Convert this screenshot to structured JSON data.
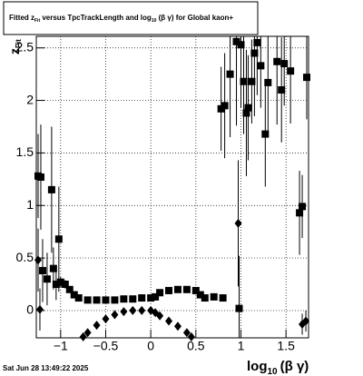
{
  "chart_data": {
    "type": "scatter",
    "title_parts": [
      "Fitted  z",
      "Fit",
      "  versus TpcTrackLength and log",
      "10",
      " (β  γ) for Global kaon+"
    ],
    "xlabel_parts": [
      "log",
      "10",
      "(β γ)"
    ],
    "ylabel_parts": [
      "z",
      "Fit"
    ],
    "footer": "Sat Jun 28 13:49:22 2025",
    "xlim": [
      -1.27,
      1.75
    ],
    "ylim": [
      -0.26,
      2.61
    ],
    "xticks": [
      {
        "value": -1,
        "label": "−1"
      },
      {
        "value": -0.5,
        "label": "−0.5"
      },
      0,
      0.5,
      1,
      1.5
    ],
    "yticks": [
      0,
      0.5,
      1,
      1.5,
      2,
      2.5
    ],
    "grid": true,
    "series": [
      {
        "marker": "square",
        "color": "#000000",
        "x": [
          -1.25,
          -1.22,
          -1.1,
          -1.02,
          -1.2,
          -1.15,
          -1.08,
          -1.05,
          -1.0,
          -0.95,
          -0.9,
          -0.85,
          -0.8,
          -0.7,
          -0.6,
          -0.5,
          -0.4,
          -0.3,
          -0.2,
          -0.1,
          0,
          0.05,
          0.1,
          0.2,
          0.3,
          0.4,
          0.5,
          0.55,
          0.6,
          0.7,
          0.8,
          0.78,
          0.82,
          0.88,
          0.95,
          1.0,
          1.03,
          1.06,
          1.08,
          1.12,
          1.15,
          1.18,
          1.22,
          1.27,
          1.3,
          1.4,
          1.45,
          1.48,
          1.55,
          1.65,
          1.68,
          1.73,
          0.98
        ],
        "values": [
          1.28,
          1.27,
          1.15,
          0.68,
          0.38,
          0.3,
          0.4,
          0.25,
          0.27,
          0.25,
          0.2,
          0.15,
          0.12,
          0.1,
          0.1,
          0.1,
          0.1,
          0.11,
          0.11,
          0.12,
          0.12,
          0.13,
          0.17,
          0.19,
          0.2,
          0.2,
          0.19,
          0.15,
          0.12,
          0.13,
          0.12,
          1.92,
          1.95,
          2.25,
          2.56,
          2.53,
          2.18,
          1.88,
          1.93,
          2.18,
          2.45,
          2.55,
          2.33,
          1.68,
          2.17,
          2.37,
          2.1,
          2.35,
          2.28,
          0.93,
          0.99,
          2.22,
          0.02
        ],
        "errors": [
          0.4,
          0.5,
          0.6,
          0.5,
          0.3,
          0.25,
          0.2,
          0.15,
          0.05,
          0.04,
          0.03,
          0.02,
          0.02,
          0.01,
          0.01,
          0.01,
          0.01,
          0.01,
          0.01,
          0.01,
          0.01,
          0.01,
          0.02,
          0.02,
          0.02,
          0.02,
          0.02,
          0.02,
          0.02,
          0.03,
          0.03,
          0.4,
          0.5,
          0.6,
          0.8,
          0.6,
          0.5,
          0.6,
          0.5,
          0.4,
          0.6,
          0.5,
          0.4,
          0.5,
          0.5,
          0.6,
          0.5,
          0.4,
          0.5,
          0.4,
          0.3,
          0.4,
          0.5
        ]
      },
      {
        "marker": "diamond",
        "color": "#000000",
        "x": [
          -1.25,
          -1.23,
          -0.75,
          -0.7,
          -0.6,
          -0.5,
          -0.4,
          -0.3,
          -0.2,
          -0.1,
          0,
          0.05,
          0.1,
          0.2,
          0.3,
          0.4,
          0.45,
          0.97,
          1.68,
          1.72
        ],
        "values": [
          0.48,
          0.01,
          -0.25,
          -0.21,
          -0.14,
          -0.08,
          -0.04,
          -0.01,
          0,
          0,
          0,
          -0.02,
          -0.05,
          -0.1,
          -0.15,
          -0.21,
          -0.25,
          0.83,
          -0.13,
          -0.1
        ],
        "errors": [
          0.3,
          0.2,
          0.01,
          0.01,
          0.01,
          0.01,
          0.01,
          0.01,
          0.01,
          0.01,
          0.01,
          0.01,
          0.01,
          0.01,
          0.01,
          0.01,
          0.01,
          0.6,
          0.1,
          0.1
        ]
      }
    ]
  }
}
